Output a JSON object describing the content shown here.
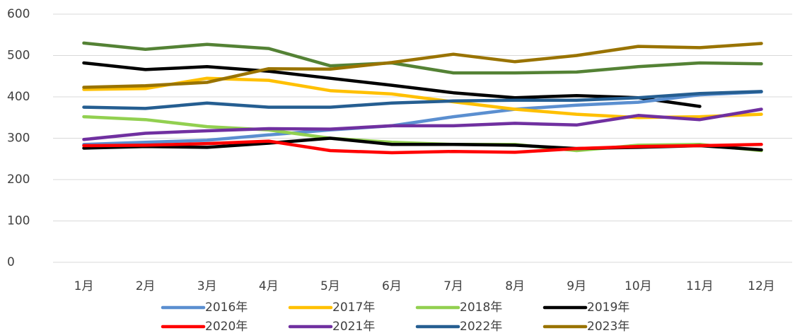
{
  "chart_data": {
    "type": "line",
    "categories": [
      "1月",
      "2月",
      "3月",
      "4月",
      "5月",
      "6月",
      "7月",
      "8月",
      "9月",
      "10月",
      "11月",
      "12月"
    ],
    "ylim": [
      0,
      600
    ],
    "yticks": [
      0,
      100,
      200,
      300,
      400,
      500,
      600
    ],
    "grid": true,
    "legend": "bottom",
    "series": [
      {
        "color": "#548235",
        "values": [
          530,
          515,
          527,
          517,
          475,
          482,
          458,
          458,
          460,
          473,
          482,
          480
        ]
      },
      {
        "color": "#000000",
        "values": [
          482,
          466,
          473,
          462,
          445,
          428,
          410,
          398,
          403,
          398,
          377,
          null
        ]
      },
      {
        "name": "2016年",
        "color": "#5b8fd0",
        "values": [
          285,
          290,
          295,
          308,
          320,
          330,
          352,
          370,
          380,
          387,
          405,
          412
        ]
      },
      {
        "name": "2017年",
        "color": "#ffc000",
        "values": [
          418,
          420,
          445,
          440,
          415,
          407,
          388,
          370,
          358,
          350,
          352,
          358
        ]
      },
      {
        "name": "2018年",
        "color": "#92d050",
        "values": [
          352,
          345,
          328,
          320,
          300,
          290,
          285,
          285,
          270,
          283,
          285,
          270
        ]
      },
      {
        "name": "2019年",
        "color": "#000000",
        "values": [
          276,
          280,
          278,
          288,
          300,
          285,
          285,
          283,
          275,
          278,
          282,
          272
        ]
      },
      {
        "name": "2020年",
        "color": "#ff0000",
        "values": [
          282,
          283,
          287,
          293,
          270,
          265,
          268,
          266,
          275,
          280,
          282,
          285
        ]
      },
      {
        "name": "2021年",
        "color": "#7030a0",
        "values": [
          297,
          312,
          318,
          323,
          322,
          330,
          330,
          336,
          332,
          355,
          345,
          370
        ]
      },
      {
        "name": "2022年",
        "color": "#255e91",
        "values": [
          375,
          372,
          385,
          375,
          375,
          385,
          390,
          392,
          392,
          398,
          408,
          413
        ]
      },
      {
        "name": "2023年",
        "color": "#997300",
        "values": [
          423,
          427,
          435,
          468,
          467,
          483,
          503,
          485,
          500,
          522,
          519,
          529
        ]
      }
    ]
  }
}
